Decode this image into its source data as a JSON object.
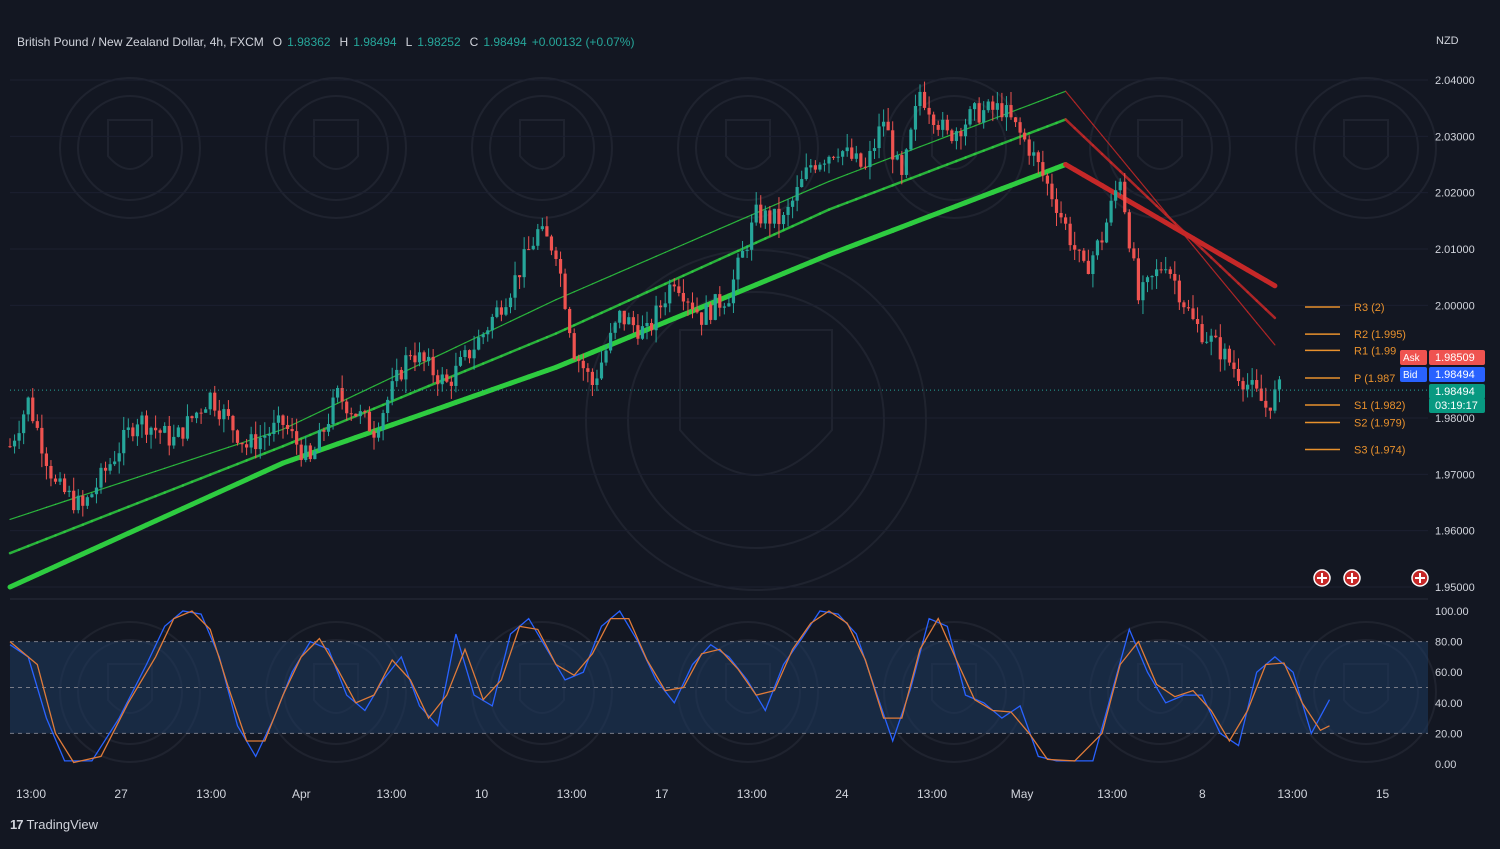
{
  "header": {
    "symbol": "British Pound / New Zealand Dollar, 4h, FXCM",
    "open_label": "O",
    "open": "1.98362",
    "high_label": "H",
    "high": "1.98494",
    "low_label": "L",
    "low": "1.98252",
    "close_label": "C",
    "close": "1.98494",
    "change": "+0.00132 (+0.07%)"
  },
  "currency": "NZD",
  "brand": "TradingView",
  "colors": {
    "background": "#131722",
    "bull": "#26a69a",
    "bear": "#ef5350",
    "ema_bull": "#2ecc40",
    "ema_bear": "#c62828",
    "stoch_k": "#2962ff",
    "stoch_d": "#e07b39",
    "pivot": "#e8912d"
  },
  "chart_data": [
    {
      "type": "candlestick",
      "title": "British Pound / New Zealand Dollar, 4h, FXCM",
      "ylim": [
        1.95,
        2.04
      ],
      "y_ticks": [
        "2.04000",
        "2.03000",
        "2.02000",
        "2.01000",
        "2.00000",
        "1.98000",
        "1.97000",
        "1.96000",
        "1.95000"
      ],
      "x_ticks": [
        "13:00",
        "27",
        "13:00",
        "Apr",
        "13:00",
        "10",
        "13:00",
        "17",
        "13:00",
        "24",
        "13:00",
        "May",
        "13:00",
        "8",
        "13:00",
        "15"
      ],
      "close_path": [
        [
          0,
          1.975
        ],
        [
          4,
          1.983
        ],
        [
          10,
          1.968
        ],
        [
          16,
          1.964
        ],
        [
          22,
          1.972
        ],
        [
          28,
          1.98
        ],
        [
          36,
          1.976
        ],
        [
          44,
          1.984
        ],
        [
          52,
          1.975
        ],
        [
          60,
          1.979
        ],
        [
          66,
          1.972
        ],
        [
          72,
          1.984
        ],
        [
          80,
          1.978
        ],
        [
          88,
          1.992
        ],
        [
          96,
          1.986
        ],
        [
          104,
          1.995
        ],
        [
          110,
          2.003
        ],
        [
          116,
          2.013
        ],
        [
          120,
          2.01
        ],
        [
          124,
          1.992
        ],
        [
          128,
          1.986
        ],
        [
          134,
          1.998
        ],
        [
          140,
          1.995
        ],
        [
          146,
          2.005
        ],
        [
          152,
          1.998
        ],
        [
          158,
          2.002
        ],
        [
          164,
          2.016
        ],
        [
          170,
          2.015
        ],
        [
          176,
          2.025
        ],
        [
          182,
          2.028
        ],
        [
          188,
          2.024
        ],
        [
          192,
          2.033
        ],
        [
          196,
          2.022
        ],
        [
          200,
          2.038
        ],
        [
          206,
          2.03
        ],
        [
          212,
          2.034
        ],
        [
          218,
          2.035
        ],
        [
          224,
          2.028
        ],
        [
          230,
          2.018
        ],
        [
          236,
          2.006
        ],
        [
          240,
          2.012
        ],
        [
          244,
          2.023
        ],
        [
          248,
          2.001
        ],
        [
          254,
          2.008
        ],
        [
          260,
          1.997
        ],
        [
          266,
          1.992
        ],
        [
          272,
          1.986
        ],
        [
          276,
          1.982
        ],
        [
          279,
          1.985
        ]
      ],
      "moving_averages_close_path": [
        {
          "values": [
            [
              0,
              1.95
            ],
            [
              60,
              1.972
            ],
            [
              120,
              1.989
            ],
            [
              180,
              2.009
            ],
            [
              232,
              2.025
            ],
            [
              279,
              2.003
            ]
          ]
        },
        {
          "values": [
            [
              0,
              1.956
            ],
            [
              60,
              1.975
            ],
            [
              120,
              1.995
            ],
            [
              180,
              2.017
            ],
            [
              232,
              2.033
            ],
            [
              279,
              1.997
            ]
          ]
        },
        {
          "values": [
            [
              0,
              1.962
            ],
            [
              60,
              1.978
            ],
            [
              120,
              2.001
            ],
            [
              180,
              2.022
            ],
            [
              232,
              2.038
            ],
            [
              279,
              1.992
            ]
          ]
        }
      ],
      "pivot_levels": [
        {
          "label": "R3 (2)",
          "value": 1.9997
        },
        {
          "label": "R2 (1.995)",
          "value": 1.9949
        },
        {
          "label": "R1 (1.99",
          "value": 1.992
        },
        {
          "label": "P (1.987",
          "value": 1.9871
        },
        {
          "label": "S1 (1.982)",
          "value": 1.9823
        },
        {
          "label": "S2 (1.979)",
          "value": 1.9792
        },
        {
          "label": "S3 (1.974)",
          "value": 1.9744
        }
      ],
      "price_labels": [
        {
          "tag": "Ask",
          "value": "1.98509"
        },
        {
          "tag": "Bid",
          "value": "1.98494"
        },
        {
          "tag": "",
          "value": "1.98494"
        },
        {
          "tag": "",
          "value": "03:19:17"
        }
      ]
    },
    {
      "type": "line",
      "title": "",
      "ylim": [
        0,
        100
      ],
      "y_ticks": [
        "100.00",
        "80.00",
        "60.00",
        "40.00",
        "20.00",
        "0.00"
      ],
      "band": [
        20,
        80
      ],
      "series": [
        {
          "values": [
            [
              0,
              78
            ],
            [
              4,
              70
            ],
            [
              8,
              30
            ],
            [
              12,
              2
            ],
            [
              18,
              2
            ],
            [
              24,
              30
            ],
            [
              30,
              65
            ],
            [
              34,
              90
            ],
            [
              38,
              100
            ],
            [
              42,
              98
            ],
            [
              46,
              70
            ],
            [
              50,
              25
            ],
            [
              54,
              5
            ],
            [
              58,
              30
            ],
            [
              62,
              60
            ],
            [
              66,
              80
            ],
            [
              70,
              75
            ],
            [
              74,
              45
            ],
            [
              78,
              35
            ],
            [
              82,
              55
            ],
            [
              86,
              70
            ],
            [
              90,
              38
            ],
            [
              94,
              25
            ],
            [
              98,
              85
            ],
            [
              102,
              45
            ],
            [
              106,
              38
            ],
            [
              110,
              85
            ],
            [
              114,
              95
            ],
            [
              118,
              75
            ],
            [
              122,
              55
            ],
            [
              126,
              60
            ],
            [
              130,
              90
            ],
            [
              134,
              100
            ],
            [
              138,
              80
            ],
            [
              142,
              55
            ],
            [
              146,
              40
            ],
            [
              150,
              65
            ],
            [
              154,
              78
            ],
            [
              158,
              70
            ],
            [
              162,
              55
            ],
            [
              166,
              35
            ],
            [
              170,
              65
            ],
            [
              174,
              82
            ],
            [
              178,
              100
            ],
            [
              182,
              98
            ],
            [
              186,
              85
            ],
            [
              190,
              50
            ],
            [
              194,
              15
            ],
            [
              198,
              50
            ],
            [
              202,
              95
            ],
            [
              206,
              90
            ],
            [
              210,
              45
            ],
            [
              214,
              40
            ],
            [
              218,
              30
            ],
            [
              222,
              38
            ],
            [
              226,
              5
            ],
            [
              230,
              2
            ],
            [
              238,
              2
            ],
            [
              242,
              45
            ],
            [
              246,
              88
            ],
            [
              250,
              60
            ],
            [
              254,
              40
            ],
            [
              258,
              45
            ],
            [
              262,
              45
            ],
            [
              266,
              20
            ],
            [
              270,
              12
            ],
            [
              274,
              60
            ],
            [
              278,
              70
            ],
            [
              282,
              60
            ],
            [
              286,
              20
            ],
            [
              290,
              42
            ]
          ]
        },
        {
          "values": [
            [
              0,
              80
            ],
            [
              6,
              65
            ],
            [
              10,
              20
            ],
            [
              14,
              1
            ],
            [
              20,
              5
            ],
            [
              26,
              40
            ],
            [
              32,
              70
            ],
            [
              36,
              95
            ],
            [
              40,
              100
            ],
            [
              44,
              88
            ],
            [
              48,
              50
            ],
            [
              52,
              15
            ],
            [
              56,
              15
            ],
            [
              60,
              45
            ],
            [
              64,
              70
            ],
            [
              68,
              82
            ],
            [
              72,
              62
            ],
            [
              76,
              40
            ],
            [
              80,
              45
            ],
            [
              84,
              68
            ],
            [
              88,
              55
            ],
            [
              92,
              30
            ],
            [
              96,
              45
            ],
            [
              100,
              75
            ],
            [
              104,
              42
            ],
            [
              108,
              55
            ],
            [
              112,
              90
            ],
            [
              116,
              88
            ],
            [
              120,
              65
            ],
            [
              124,
              58
            ],
            [
              128,
              72
            ],
            [
              132,
              95
            ],
            [
              136,
              95
            ],
            [
              140,
              68
            ],
            [
              144,
              48
            ],
            [
              148,
              50
            ],
            [
              152,
              72
            ],
            [
              156,
              75
            ],
            [
              160,
              62
            ],
            [
              164,
              45
            ],
            [
              168,
              48
            ],
            [
              172,
              75
            ],
            [
              176,
              92
            ],
            [
              180,
              100
            ],
            [
              184,
              92
            ],
            [
              188,
              68
            ],
            [
              192,
              30
            ],
            [
              196,
              30
            ],
            [
              200,
              75
            ],
            [
              204,
              95
            ],
            [
              208,
              68
            ],
            [
              212,
              42
            ],
            [
              216,
              35
            ],
            [
              220,
              34
            ],
            [
              224,
              20
            ],
            [
              228,
              3
            ],
            [
              234,
              2
            ],
            [
              240,
              20
            ],
            [
              244,
              65
            ],
            [
              248,
              80
            ],
            [
              252,
              52
            ],
            [
              256,
              44
            ],
            [
              260,
              48
            ],
            [
              264,
              35
            ],
            [
              268,
              15
            ],
            [
              272,
              35
            ],
            [
              276,
              65
            ],
            [
              280,
              66
            ],
            [
              284,
              40
            ],
            [
              288,
              22
            ],
            [
              290,
              25
            ]
          ]
        }
      ]
    }
  ]
}
